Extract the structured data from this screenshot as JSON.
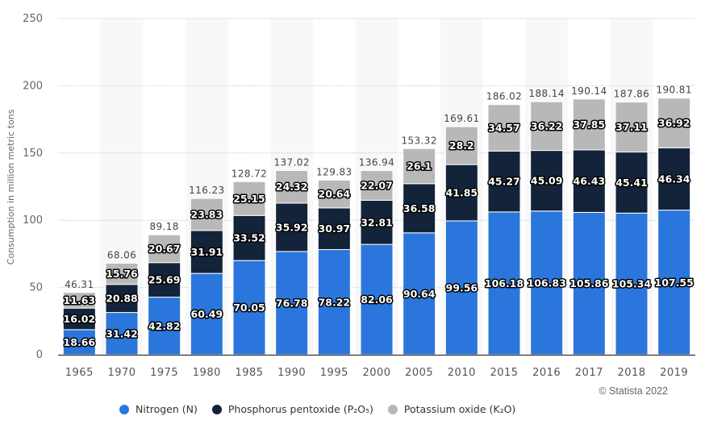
{
  "chart_data": {
    "type": "bar",
    "stacked": true,
    "title": "",
    "xlabel": "",
    "ylabel": "Consumption in million metric tons",
    "ylim": [
      0,
      250
    ],
    "yticks": [
      "0",
      "50",
      "100",
      "150",
      "200",
      "250"
    ],
    "grid": true,
    "legend_position": "bottom",
    "categories": [
      "1965",
      "1970",
      "1975",
      "1980",
      "1985",
      "1990",
      "1995",
      "2000",
      "2005",
      "2010",
      "2015",
      "2016",
      "2017",
      "2018",
      "2019"
    ],
    "series": [
      {
        "name": "Nitrogen (N)",
        "color": "#2a76dc",
        "values": [
          18.66,
          31.42,
          42.82,
          60.49,
          70.05,
          76.78,
          78.22,
          82.06,
          90.64,
          99.56,
          106.18,
          106.83,
          105.86,
          105.34,
          107.55
        ]
      },
      {
        "name": "Phosphorus pentoxide (P₂O₅)",
        "color": "#13233a",
        "values": [
          16.02,
          20.88,
          25.69,
          31.91,
          33.52,
          35.92,
          30.97,
          32.81,
          36.58,
          41.85,
          45.27,
          45.09,
          46.43,
          45.41,
          46.34
        ]
      },
      {
        "name": "Potassium oxide (K₂O)",
        "color": "#b8b8b8",
        "values": [
          11.63,
          15.76,
          20.67,
          23.83,
          25.15,
          24.32,
          20.64,
          22.07,
          26.1,
          28.2,
          34.57,
          36.22,
          37.85,
          37.11,
          36.92
        ]
      }
    ],
    "totals": [
      "46.31",
      "68.06",
      "89.18",
      "116.23",
      "128.72",
      "137.02",
      "129.83",
      "136.94",
      "153.32",
      "169.61",
      "186.02",
      "188.14",
      "190.14",
      "187.86",
      "190.81"
    ],
    "value_labels": [
      [
        "18.66",
        "31.42",
        "42.82",
        "60.49",
        "70.05",
        "76.78",
        "78.22",
        "82.06",
        "90.64",
        "99.56",
        "106.18",
        "106.83",
        "105.86",
        "105.34",
        "107.55"
      ],
      [
        "16.02",
        "20.88",
        "25.69",
        "31.91",
        "33.52",
        "35.92",
        "30.97",
        "32.81",
        "36.58",
        "41.85",
        "45.27",
        "45.09",
        "46.43",
        "45.41",
        "46.34"
      ],
      [
        "11.63",
        "15.76",
        "20.67",
        "23.83",
        "25.15",
        "24.32",
        "20.64",
        "22.07",
        "26.1",
        "28.2",
        "34.57",
        "36.22",
        "37.85",
        "37.11",
        "36.92"
      ]
    ]
  },
  "legend": {
    "items": [
      {
        "label": "Nitrogen (N)",
        "color": "#2a76dc"
      },
      {
        "label": "Phosphorus pentoxide (P₂O₅)",
        "color": "#13233a"
      },
      {
        "label": "Potassium oxide (K₂O)",
        "color": "#b8b8b8"
      }
    ]
  },
  "credit": "© Statista 2022"
}
